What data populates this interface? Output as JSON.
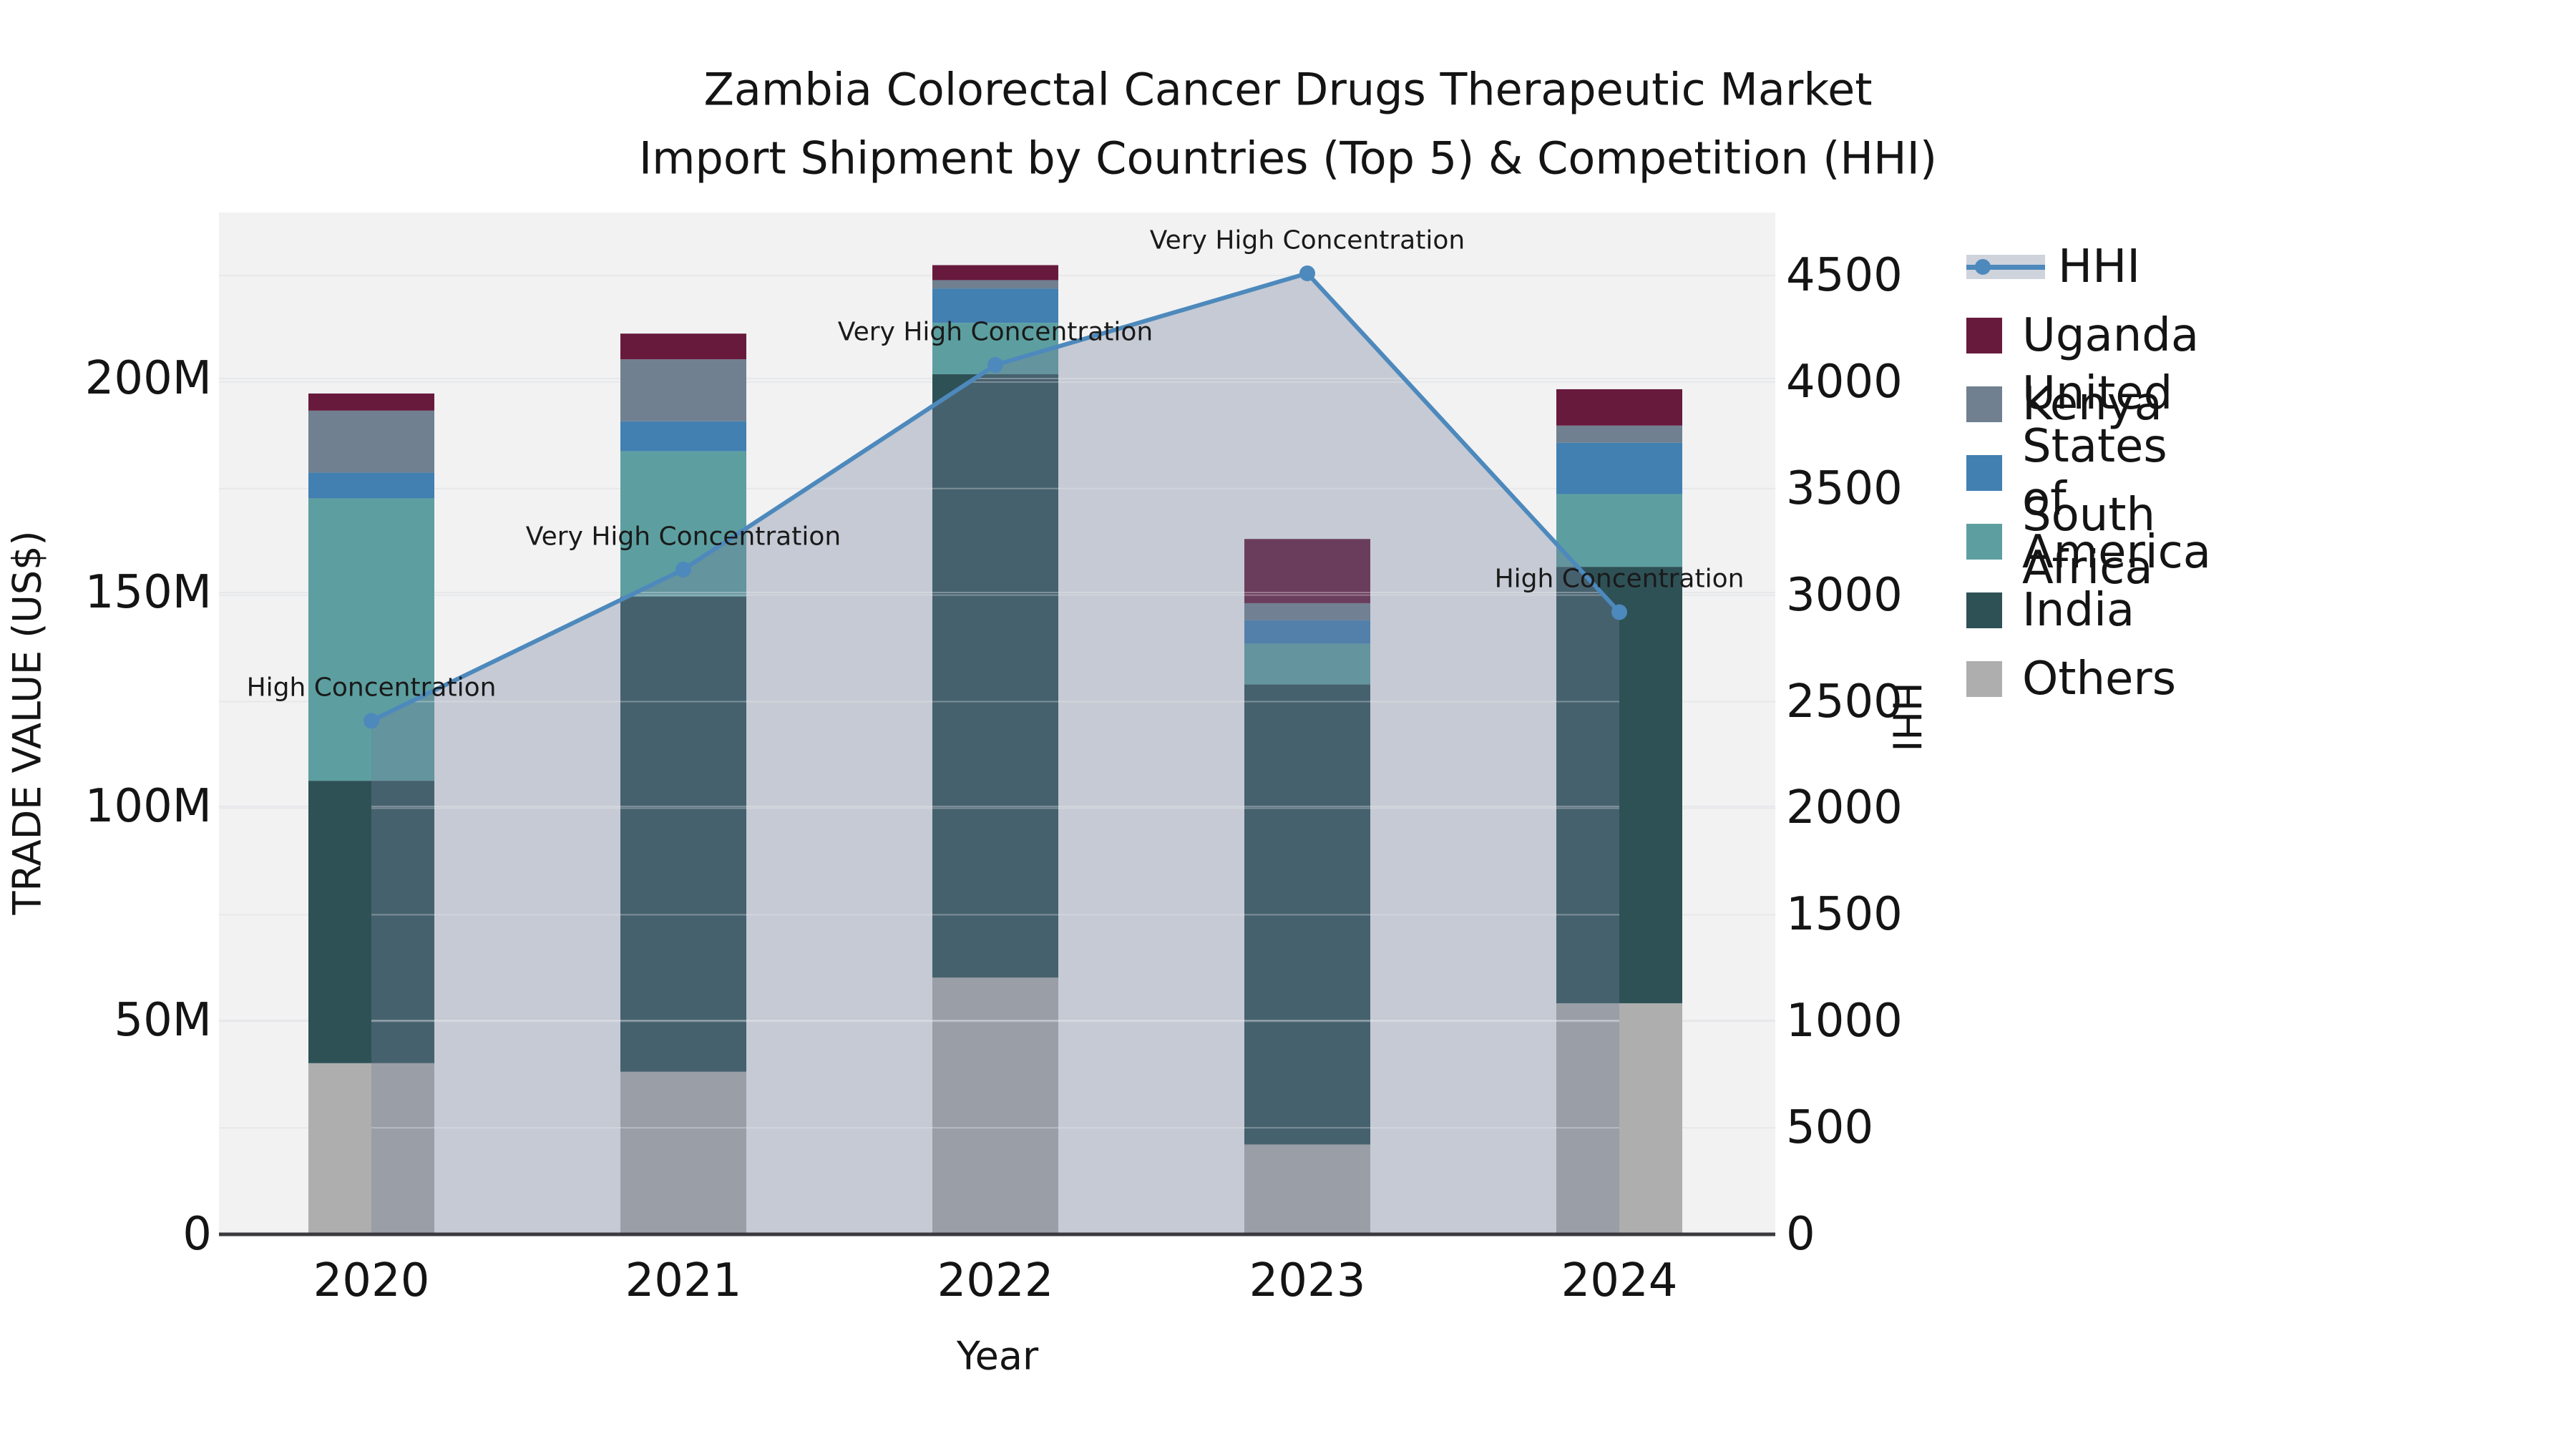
{
  "title": {
    "line1": "Zambia Colorectal Cancer Drugs Therapeutic Market",
    "line2": "Import Shipment by Countries (Top 5) & Competition (HHI)"
  },
  "axes": {
    "x_label": "Year",
    "y_left_label": "TRADE VALUE (US$)",
    "y_right_label": "HHI",
    "y_left_ticks": [
      {
        "label": "0",
        "value": 0
      },
      {
        "label": "50M",
        "value": 50
      },
      {
        "label": "100M",
        "value": 100
      },
      {
        "label": "150M",
        "value": 150
      },
      {
        "label": "200M",
        "value": 200
      }
    ],
    "y_right_ticks": [
      {
        "label": "0",
        "value": 0
      },
      {
        "label": "500",
        "value": 500
      },
      {
        "label": "1000",
        "value": 1000
      },
      {
        "label": "1500",
        "value": 1500
      },
      {
        "label": "2000",
        "value": 2000
      },
      {
        "label": "2500",
        "value": 2500
      },
      {
        "label": "3000",
        "value": 3000
      },
      {
        "label": "3500",
        "value": 3500
      },
      {
        "label": "4000",
        "value": 4000
      },
      {
        "label": "4500",
        "value": 4500
      }
    ]
  },
  "legend": {
    "items": [
      {
        "label": "HHI",
        "type": "line",
        "color": "#4d89bc"
      },
      {
        "label": "Uganda",
        "type": "patch",
        "color": "#681a3d"
      },
      {
        "label": "Kenya",
        "type": "patch",
        "color": "#708090"
      },
      {
        "label": "United States of America",
        "type": "patch",
        "color": "#4280b2"
      },
      {
        "label": "South Africa",
        "type": "patch",
        "color": "#5d9fa0"
      },
      {
        "label": "India",
        "type": "patch",
        "color": "#2e5156"
      },
      {
        "label": "Others",
        "type": "patch",
        "color": "#aeaeae"
      }
    ]
  },
  "colors": {
    "plot_bg": "#f2f2f3",
    "grid": "#e7e8ea",
    "grid_over_fill": "rgba(255,255,255,0.3)",
    "spine": "#3a3a3e",
    "hhi_line": "#4d89bc",
    "area_fill": "rgba(115,130,155,0.35)"
  },
  "chart_data": {
    "type": "bar",
    "subtype": "stacked-bars-with-line-overlay",
    "title": "Zambia Colorectal Cancer Drugs Therapeutic Market Import Shipment by Countries (Top 5) & Competition (HHI)",
    "categories": [
      "2020",
      "2021",
      "2022",
      "2023",
      "2024"
    ],
    "value_unit": "million US$",
    "xlabel": "Year",
    "ylabel_left": "TRADE VALUE (US$)",
    "ylabel_right": "HHI",
    "grid": true,
    "legend_position": "right",
    "series": [
      {
        "name": "Others",
        "color": "#aeaeae",
        "values": [
          40,
          38,
          60,
          21,
          54
        ]
      },
      {
        "name": "India",
        "color": "#2e5156",
        "values": [
          66,
          111,
          141,
          107.5,
          102
        ]
      },
      {
        "name": "South Africa",
        "color": "#5d9fa0",
        "values": [
          66,
          34,
          12,
          9.5,
          17
        ]
      },
      {
        "name": "United States of America",
        "color": "#4280b2",
        "values": [
          6,
          7,
          8,
          5.5,
          12
        ]
      },
      {
        "name": "Kenya",
        "color": "#708090",
        "values": [
          14.5,
          14.5,
          2,
          4,
          4
        ]
      },
      {
        "name": "Uganda",
        "color": "#681a3d",
        "values": [
          4,
          6,
          3.5,
          15,
          8.5
        ]
      }
    ],
    "bar_totals": [
      196.5,
      210.5,
      226.5,
      162.5,
      197.5
    ],
    "line_series": {
      "name": "HHI",
      "axis": "right",
      "color": "#4d89bc",
      "values": [
        2410,
        3120,
        4080,
        4510,
        2920
      ]
    },
    "annotations": [
      {
        "category": "2020",
        "text": "High Concentration"
      },
      {
        "category": "2021",
        "text": "Very High Concentration"
      },
      {
        "category": "2022",
        "text": "Very High Concentration"
      },
      {
        "category": "2023",
        "text": "Very High Concentration"
      },
      {
        "category": "2024",
        "text": "High Concentration"
      }
    ],
    "y_left_range": [
      0,
      238
    ],
    "y_right_range": [
      0,
      4795
    ]
  }
}
